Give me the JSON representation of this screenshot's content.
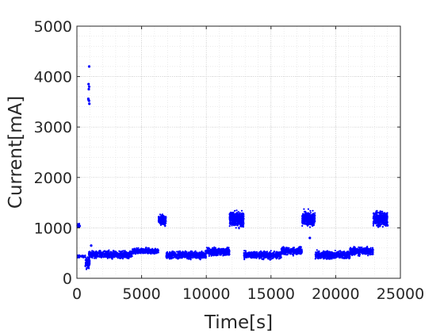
{
  "chart_data": {
    "type": "scatter",
    "title": "",
    "xlabel": "Time[s]",
    "ylabel": "Current[mA]",
    "xlim": [
      0,
      25000
    ],
    "ylim": [
      0,
      5000
    ],
    "xticks": [
      0,
      5000,
      10000,
      15000,
      20000,
      25000
    ],
    "yticks": [
      0,
      1000,
      2000,
      3000,
      4000,
      5000
    ],
    "xtick_labels": [
      "0",
      "5000",
      "10000",
      "15000",
      "20000",
      "25000"
    ],
    "ytick_labels": [
      "0",
      "1000",
      "2000",
      "3000",
      "4000",
      "5000"
    ],
    "grid": true,
    "minor_grid": true,
    "legend": "none",
    "series": [
      {
        "color": "#0000ff",
        "marker": "dot",
        "clusters": [
          {
            "x_range": [
              0,
              250
            ],
            "y_range": [
              980,
              1100
            ]
          },
          {
            "x_range": [
              0,
              650
            ],
            "y_range": [
              400,
              470
            ]
          },
          {
            "x_range": [
              650,
              1000
            ],
            "y_range": [
              150,
              450
            ]
          },
          {
            "x_range": [
              900,
              4300
            ],
            "y_range": [
              370,
              570
            ]
          },
          {
            "x_range": [
              4300,
              6300
            ],
            "y_range": [
              460,
              620
            ]
          },
          {
            "x_range": [
              6300,
              6900
            ],
            "y_range": [
              1000,
              1310
            ]
          },
          {
            "x_range": [
              6900,
              10000
            ],
            "y_range": [
              360,
              560
            ]
          },
          {
            "x_range": [
              10000,
              11800
            ],
            "y_range": [
              420,
              630
            ]
          },
          {
            "x_range": [
              11800,
              12900
            ],
            "y_range": [
              960,
              1380
            ]
          },
          {
            "x_range": [
              12900,
              15800
            ],
            "y_range": [
              360,
              560
            ]
          },
          {
            "x_range": [
              15800,
              17400
            ],
            "y_range": [
              440,
              640
            ]
          },
          {
            "x_range": [
              17400,
              18400
            ],
            "y_range": [
              980,
              1380
            ]
          },
          {
            "x_range": [
              18400,
              21100
            ],
            "y_range": [
              360,
              570
            ]
          },
          {
            "x_range": [
              21100,
              22900
            ],
            "y_range": [
              430,
              640
            ]
          },
          {
            "x_range": [
              22900,
              24000
            ],
            "y_range": [
              980,
              1380
            ]
          }
        ],
        "outliers": [
          {
            "x": 950,
            "y": 4200
          },
          {
            "x": 900,
            "y": 3850
          },
          {
            "x": 950,
            "y": 3800
          },
          {
            "x": 920,
            "y": 3750
          },
          {
            "x": 880,
            "y": 3560
          },
          {
            "x": 940,
            "y": 3520
          },
          {
            "x": 960,
            "y": 3460
          },
          {
            "x": 900,
            "y": 3540
          },
          {
            "x": 18000,
            "y": 800
          },
          {
            "x": 1100,
            "y": 650
          },
          {
            "x": 24000,
            "y": 1050
          }
        ]
      }
    ]
  }
}
